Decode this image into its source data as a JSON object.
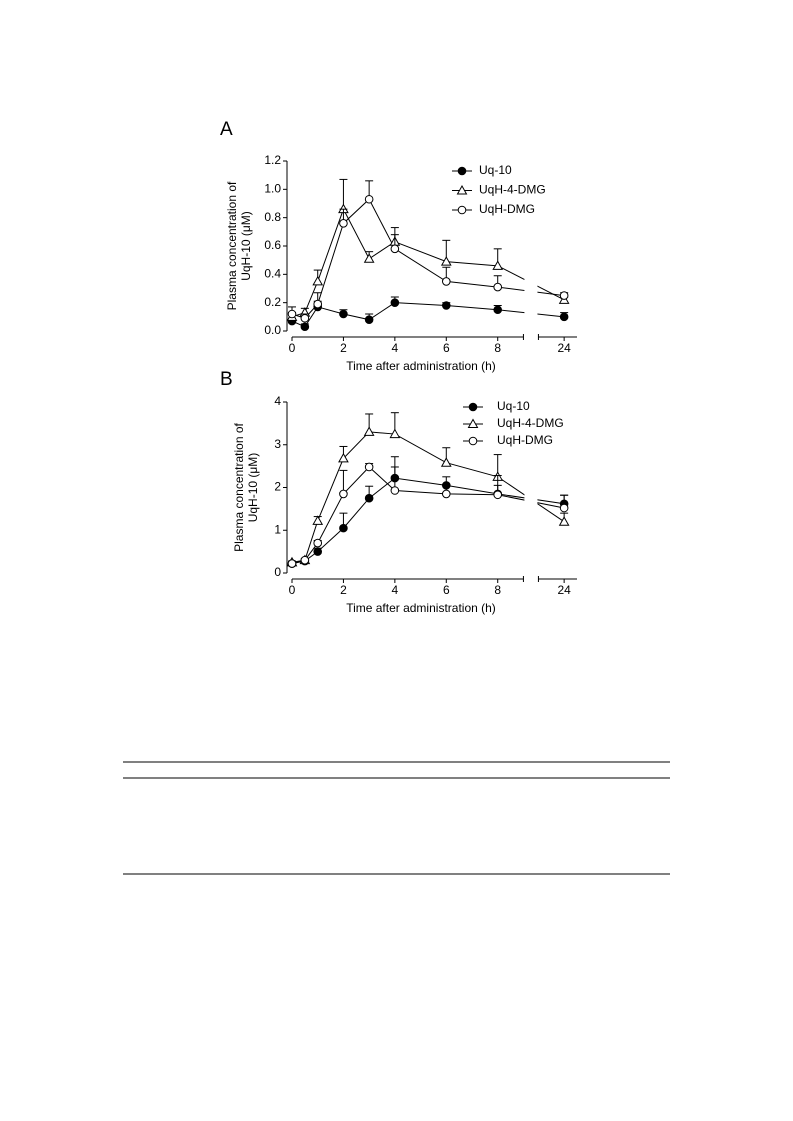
{
  "chart_data": [
    {
      "type": "line",
      "panel": "A",
      "ylabel": [
        "Plasma concentration of",
        "UqH-10 (μM)"
      ],
      "xlabel": "Time after administration (h)",
      "x": [
        0,
        0.5,
        1,
        2,
        3,
        4,
        6,
        8,
        24
      ],
      "xlim": [
        0,
        24.5
      ],
      "x_break": [
        9,
        23
      ],
      "xticks": [
        0,
        2,
        4,
        6,
        8,
        24
      ],
      "ylim": [
        0,
        1.2
      ],
      "yticks": [
        {
          "value": 0,
          "label": "0.0"
        },
        0.2,
        0.4,
        0.6,
        0.8,
        {
          "value": 1,
          "label": "1.0"
        },
        1.2
      ],
      "legend": "upper right",
      "series": [
        {
          "name": "Uq-10",
          "color": "#000000",
          "marker": "filled-circle",
          "values": [
            0.07,
            0.03,
            0.17,
            0.12,
            0.08,
            0.2,
            0.18,
            0.15,
            0.1
          ],
          "errors": [
            0.02,
            0.02,
            0.1,
            0.03,
            0.04,
            0.04,
            0.02,
            0.03,
            0.03
          ]
        },
        {
          "name": "UqH-4-DMG",
          "color": "#000000",
          "marker": "open-triangle",
          "values": [
            0.1,
            0.13,
            0.35,
            0.86,
            0.51,
            0.63,
            0.49,
            0.46,
            0.22
          ],
          "errors": [
            0.03,
            0.03,
            0.08,
            0.21,
            0.05,
            0.1,
            0.15,
            0.12,
            0.02
          ]
        },
        {
          "name": "UqH-DMG",
          "color": "#000000",
          "marker": "open-circle",
          "values": [
            0.12,
            0.09,
            0.19,
            0.76,
            0.93,
            0.58,
            0.35,
            0.31,
            0.25
          ],
          "errors": [
            0.05,
            0.03,
            0.02,
            0.1,
            0.13,
            0.1,
            0.1,
            0.08,
            0.02
          ]
        }
      ]
    },
    {
      "type": "line",
      "panel": "B",
      "ylabel": [
        "Plasma concentration of",
        "UqH-10 (μM)"
      ],
      "xlabel": "Time after administration (h)",
      "x": [
        0,
        0.5,
        1,
        2,
        3,
        4,
        6,
        8,
        24
      ],
      "xlim": [
        0,
        24.5
      ],
      "x_break": [
        9,
        23
      ],
      "xticks": [
        0,
        2,
        4,
        6,
        8,
        24
      ],
      "ylim": [
        0,
        4
      ],
      "yticks": [
        0,
        1,
        2,
        3,
        4
      ],
      "legend": "upper right",
      "series": [
        {
          "name": "Uq-10",
          "color": "#000000",
          "marker": "filled-circle",
          "values": [
            0.22,
            0.28,
            0.5,
            1.05,
            1.75,
            2.22,
            2.05,
            1.85,
            1.62
          ],
          "errors": [
            0.03,
            0.03,
            0.08,
            0.35,
            0.28,
            0.5,
            0.2,
            0.2,
            0.2
          ]
        },
        {
          "name": "UqH-4-DMG",
          "color": "#000000",
          "marker": "open-triangle",
          "values": [
            0.25,
            0.3,
            1.22,
            2.68,
            3.3,
            3.25,
            2.58,
            2.25,
            1.2
          ],
          "errors": [
            0.03,
            0.03,
            0.1,
            0.28,
            0.42,
            0.5,
            0.35,
            0.52,
            0.2
          ]
        },
        {
          "name": "UqH-DMG",
          "color": "#000000",
          "marker": "open-circle",
          "values": [
            0.22,
            0.3,
            0.7,
            1.85,
            2.48,
            1.93,
            1.85,
            1.83,
            1.52
          ],
          "errors": [
            0.03,
            0.03,
            0.06,
            0.55,
            0.08,
            0.55,
            0.22,
            0.45,
            0.3
          ]
        }
      ]
    }
  ]
}
